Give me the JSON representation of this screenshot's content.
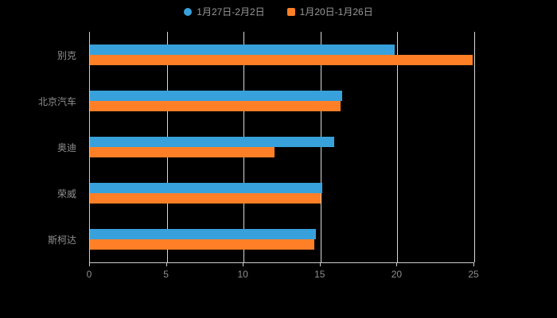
{
  "chart_data": {
    "type": "bar",
    "orientation": "horizontal",
    "title": "",
    "xlabel": "",
    "ylabel": "",
    "categories": [
      "别克",
      "北京汽车",
      "奥迪",
      "荣威",
      "斯柯达"
    ],
    "series": [
      {
        "name": "1月27日-2月2日",
        "color": "#38a1db",
        "marker": "circle",
        "values": [
          19.8,
          16.4,
          15.9,
          15.1,
          14.7
        ]
      },
      {
        "name": "1月20日-1月26日",
        "color": "#ff7f27",
        "marker": "square",
        "values": [
          24.9,
          16.3,
          12.0,
          15.0,
          14.6
        ]
      }
    ],
    "xlim": [
      0,
      25
    ],
    "xticks": [
      0,
      5,
      10,
      15,
      20,
      25
    ],
    "grid": true,
    "legend_position": "top",
    "background_color": "#000000",
    "axis_color": "#cccccc",
    "gridline_color": "#d9d9d9",
    "label_color": "#8f8f8f"
  }
}
